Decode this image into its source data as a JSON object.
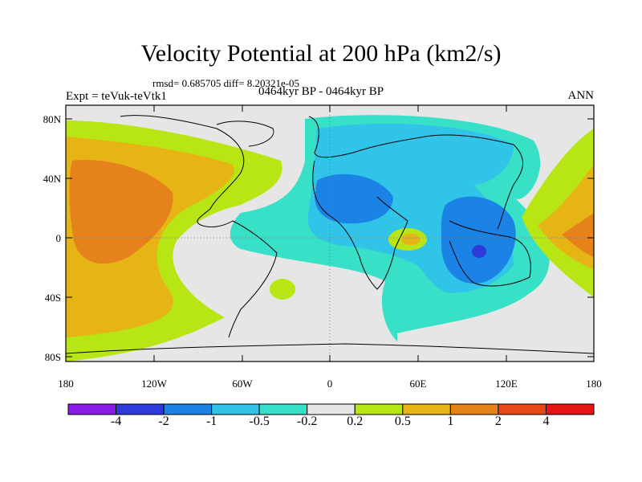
{
  "title": "Velocity Potential at 200 hPa (km2/s)",
  "stats": "rmsd= 0.685705  diff= 8.20321e-05",
  "experiment": "Expt = teVuk-teVtk1",
  "period": "0464kyr BP - 0464kyr BP",
  "season": "ANN",
  "lat_labels": [
    "80N",
    "40N",
    "0",
    "40S",
    "80S"
  ],
  "lon_labels": [
    "180",
    "120W",
    "60W",
    "0",
    "60E",
    "120E",
    "180"
  ],
  "colorbar": {
    "colors": [
      "#8a1ce6",
      "#2e3ad9",
      "#1b82e6",
      "#2fc4e8",
      "#38e0c8",
      "#e6e6e6",
      "#b8e614",
      "#e6b414",
      "#e6821c",
      "#e64a14",
      "#e61414"
    ],
    "labels": [
      "-4",
      "-2",
      "-1",
      "-0.5",
      "-0.2",
      "0.2",
      "0.5",
      "1",
      "2",
      "4"
    ]
  }
}
